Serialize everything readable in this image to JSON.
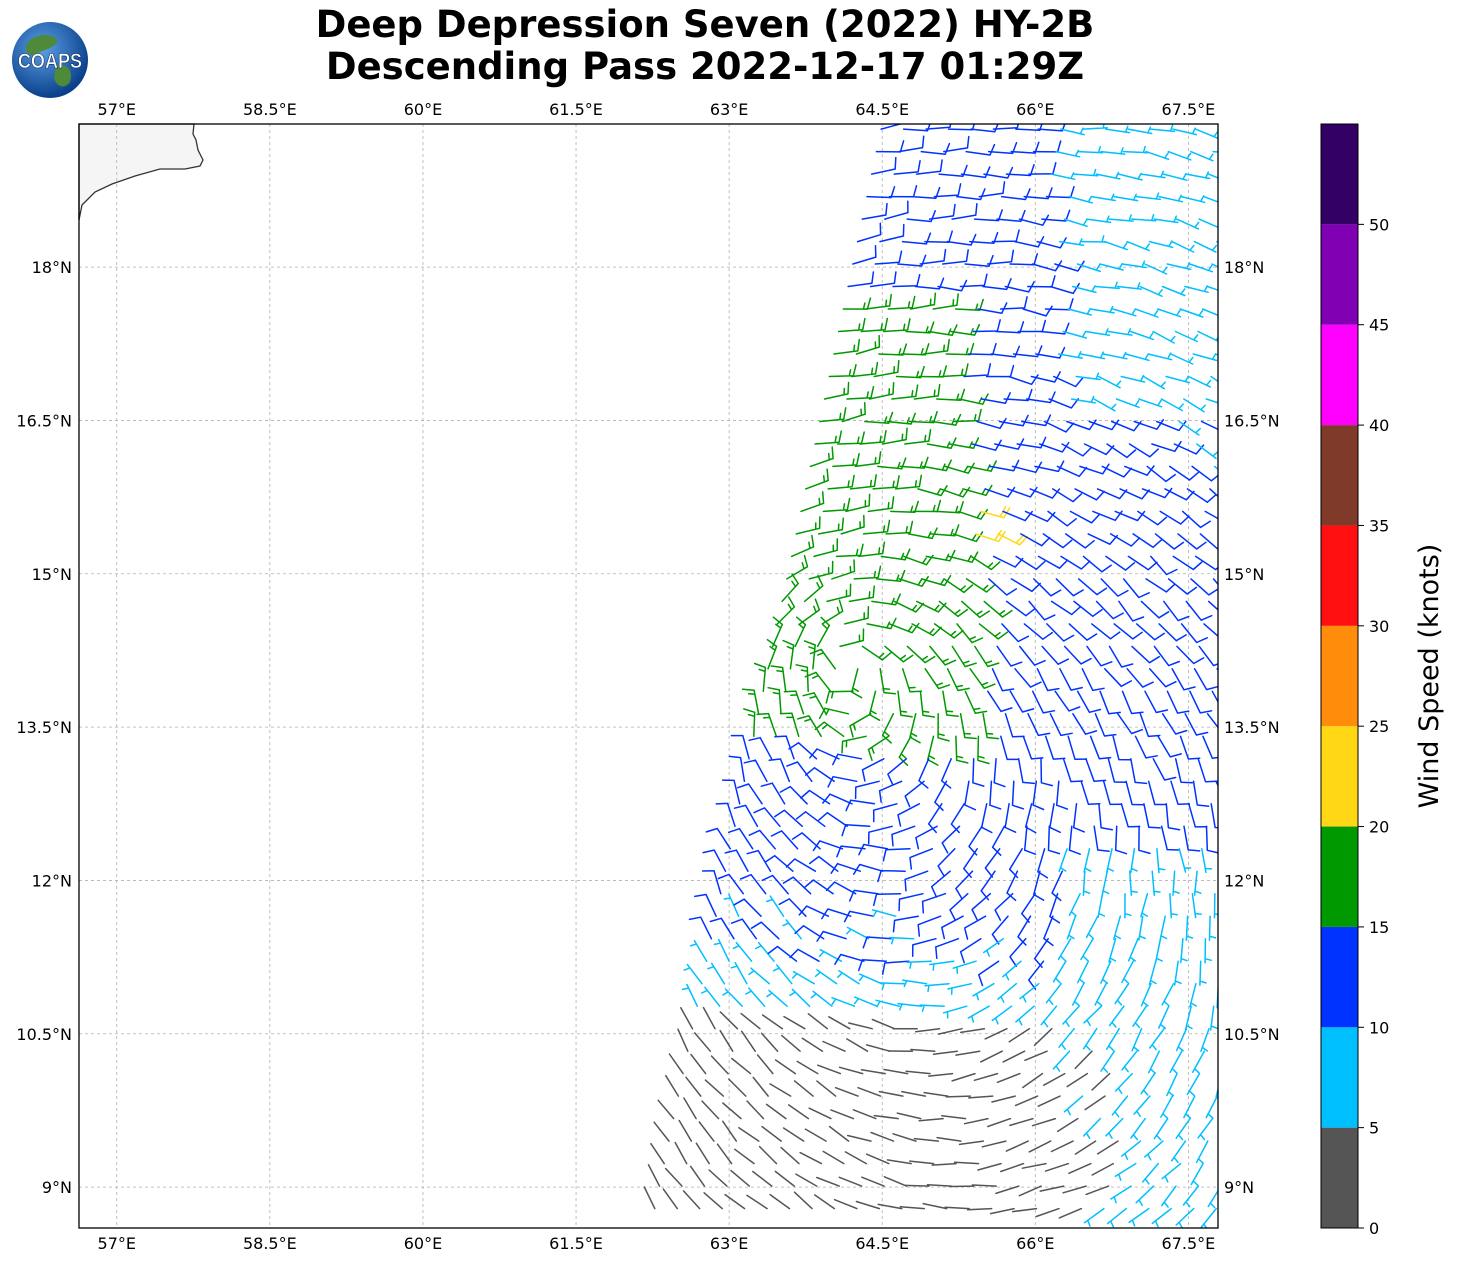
{
  "title": {
    "line1": "Deep Depression Seven (2022) HY-2B",
    "line2": "Descending Pass 2022-12-17 01:29Z"
  },
  "logo": {
    "text": "COAPS",
    "icon": "globe-icon"
  },
  "map": {
    "type": "wind-barb-map",
    "lon_range": [
      56.63,
      67.79
    ],
    "lat_range": [
      8.6,
      19.4
    ],
    "lon_ticks": [
      "57°E",
      "58.5°E",
      "60°E",
      "61.5°E",
      "63°E",
      "64.5°E",
      "66°E",
      "67.5°E"
    ],
    "lat_ticks": [
      "18°N",
      "16.5°N",
      "15°N",
      "13.5°N",
      "12°N",
      "10.5°N",
      "9°N"
    ],
    "gridlines": true,
    "land_color": "#f5f5f5",
    "barb_region": "swath from about 62.2°E–67.8°E, widening southward",
    "calm_symbol": "circle"
  },
  "colorbar": {
    "label": "Wind Speed (knots)",
    "tick_labels": [
      "0",
      "5",
      "10",
      "15",
      "20",
      "25",
      "30",
      "35",
      "40",
      "45",
      "50"
    ],
    "bins": [
      {
        "min": 0,
        "max": 5,
        "color": "#555555"
      },
      {
        "min": 5,
        "max": 10,
        "color": "#00bfff"
      },
      {
        "min": 10,
        "max": 15,
        "color": "#0033ff"
      },
      {
        "min": 15,
        "max": 20,
        "color": "#009900"
      },
      {
        "min": 20,
        "max": 25,
        "color": "#ffd715"
      },
      {
        "min": 25,
        "max": 30,
        "color": "#ff8c0a"
      },
      {
        "min": 30,
        "max": 35,
        "color": "#ff0f0f"
      },
      {
        "min": 35,
        "max": 40,
        "color": "#7f3a2a"
      },
      {
        "min": 40,
        "max": 45,
        "color": "#ff00ff"
      },
      {
        "min": 45,
        "max": 50,
        "color": "#8000b3"
      },
      {
        "min": 50,
        "max": 55,
        "color": "#330066"
      }
    ]
  }
}
